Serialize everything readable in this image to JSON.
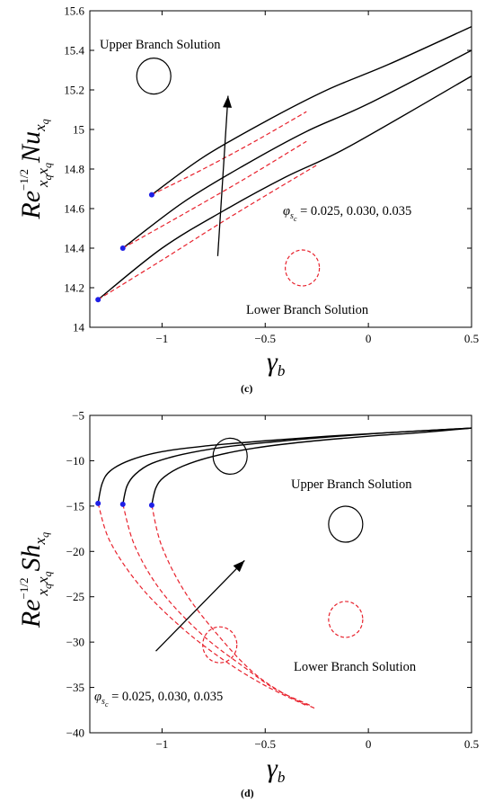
{
  "chart_data": [
    {
      "panel_label": "(c)",
      "type": "line",
      "xlabel": {
        "main": "γ",
        "sub": "b"
      },
      "ylabel": {
        "main": "Re",
        "exp": "−1/2",
        "sub1": "x",
        "sub2": "q",
        "sub3": "x",
        "sub4": "q",
        "mid": "Nu",
        "sub5": "x",
        "sub6": "q"
      },
      "xlim": [
        -1.35,
        0.5
      ],
      "ylim": [
        14,
        15.6
      ],
      "xticks": [
        -1,
        -0.5,
        0,
        0.5
      ],
      "xtick_labels": [
        "−1",
        "−0.5",
        "0",
        "0.5"
      ],
      "yticks": [
        14,
        14.2,
        14.4,
        14.6,
        14.8,
        15,
        15.2,
        15.4,
        15.6
      ],
      "ytick_labels": [
        "14",
        "14.2",
        "14.4",
        "14.6",
        "14.8",
        "15",
        "15.2",
        "15.4",
        "15.6"
      ],
      "annotations": {
        "upper": "Upper Branch Solution",
        "lower": "Lower Branch Solution",
        "param": "φ",
        "param_sub": "s",
        "param_subsub": "c",
        "param_values": " = 0.025, 0.030, 0.035"
      },
      "series": [
        {
          "branch": "upper",
          "color": "#000000",
          "x": [
            -1.05,
            -0.8,
            -0.5,
            -0.2,
            0.1,
            0.5
          ],
          "y": [
            14.67,
            14.86,
            15.04,
            15.2,
            15.33,
            15.52
          ]
        },
        {
          "branch": "upper",
          "color": "#000000",
          "x": [
            -1.19,
            -0.9,
            -0.6,
            -0.3,
            0.0,
            0.5
          ],
          "y": [
            14.4,
            14.63,
            14.82,
            14.99,
            15.13,
            15.4
          ]
        },
        {
          "branch": "upper",
          "color": "#000000",
          "x": [
            -1.31,
            -1.0,
            -0.7,
            -0.4,
            -0.1,
            0.5
          ],
          "y": [
            14.14,
            14.4,
            14.59,
            14.76,
            14.91,
            15.27
          ]
        },
        {
          "branch": "lower",
          "color": "#e8222d",
          "x": [
            -1.05,
            -0.8,
            -0.55,
            -0.3
          ],
          "y": [
            14.67,
            14.8,
            14.94,
            15.09
          ]
        },
        {
          "branch": "lower",
          "color": "#e8222d",
          "x": [
            -1.19,
            -0.9,
            -0.6,
            -0.3
          ],
          "y": [
            14.4,
            14.57,
            14.75,
            14.94
          ]
        },
        {
          "branch": "lower",
          "color": "#e8222d",
          "x": [
            -1.31,
            -1.0,
            -0.65,
            -0.25
          ],
          "y": [
            14.14,
            14.34,
            14.57,
            14.82
          ]
        }
      ],
      "turning_points": {
        "color": "#1f1fe6",
        "x": [
          -1.05,
          -1.19,
          -1.31
        ],
        "y": [
          14.67,
          14.4,
          14.14
        ]
      },
      "arrow": {
        "from": [
          -0.73,
          14.36
        ],
        "to": [
          -0.68,
          15.17
        ]
      },
      "circles": [
        {
          "branch": "upper",
          "cx": -1.04,
          "cy": 15.27
        },
        {
          "branch": "lower",
          "cx": -0.32,
          "cy": 14.3
        }
      ]
    },
    {
      "panel_label": "(d)",
      "type": "line",
      "xlabel": {
        "main": "γ",
        "sub": "b"
      },
      "ylabel": {
        "main": "Re",
        "exp": "−1/2",
        "sub1": "x",
        "sub2": "q",
        "sub3": "x",
        "sub4": "q",
        "mid": "Sh",
        "sub5": "x",
        "sub6": "q"
      },
      "xlim": [
        -1.35,
        0.5
      ],
      "ylim": [
        -40,
        -5
      ],
      "xticks": [
        -1,
        -0.5,
        0,
        0.5
      ],
      "xtick_labels": [
        "−1",
        "−0.5",
        "0",
        "0.5"
      ],
      "yticks": [
        -40,
        -35,
        -30,
        -25,
        -20,
        -15,
        -10,
        -5
      ],
      "ytick_labels": [
        "−40",
        "−35",
        "−30",
        "−25",
        "−20",
        "−15",
        "−10",
        "−5"
      ],
      "annotations": {
        "upper": "Upper Branch Solution",
        "lower": "Lower Branch Solution",
        "param": "φ",
        "param_sub": "s",
        "param_subsub": "c",
        "param_values": " = 0.025, 0.030, 0.035"
      },
      "series": [
        {
          "branch": "upper",
          "color": "#000000",
          "x": [
            -1.31,
            -1.29,
            -1.25,
            -1.15,
            -1.0,
            -0.8,
            -0.5,
            -0.2,
            0.1,
            0.5
          ],
          "y": [
            -14.7,
            -12.5,
            -11.1,
            -9.9,
            -9.0,
            -8.4,
            -7.8,
            -7.3,
            -6.9,
            -6.4
          ]
        },
        {
          "branch": "upper",
          "color": "#000000",
          "x": [
            -1.19,
            -1.17,
            -1.13,
            -1.05,
            -0.9,
            -0.7,
            -0.45,
            -0.2,
            0.1,
            0.5
          ],
          "y": [
            -14.8,
            -12.8,
            -11.5,
            -10.3,
            -9.3,
            -8.5,
            -7.9,
            -7.4,
            -6.9,
            -6.4
          ]
        },
        {
          "branch": "upper",
          "color": "#000000",
          "x": [
            -1.05,
            -1.03,
            -0.99,
            -0.9,
            -0.75,
            -0.55,
            -0.3,
            0.0,
            0.25,
            0.5
          ],
          "y": [
            -14.9,
            -13.0,
            -11.8,
            -10.6,
            -9.5,
            -8.6,
            -7.9,
            -7.3,
            -6.9,
            -6.4
          ]
        },
        {
          "branch": "lower",
          "color": "#e8222d",
          "x": [
            -1.31,
            -1.25,
            -1.1,
            -0.9,
            -0.7,
            -0.5,
            -0.3
          ],
          "y": [
            -14.7,
            -19.0,
            -24.0,
            -28.5,
            -32.0,
            -34.8,
            -37.0
          ]
        },
        {
          "branch": "lower",
          "color": "#e8222d",
          "x": [
            -1.19,
            -1.13,
            -1.0,
            -0.8,
            -0.6,
            -0.45,
            -0.28
          ],
          "y": [
            -14.8,
            -19.5,
            -24.5,
            -29.3,
            -32.8,
            -35.2,
            -37.0
          ]
        },
        {
          "branch": "lower",
          "color": "#e8222d",
          "x": [
            -1.05,
            -1.0,
            -0.88,
            -0.7,
            -0.55,
            -0.4,
            -0.25
          ],
          "y": [
            -14.9,
            -19.5,
            -24.8,
            -30.0,
            -33.5,
            -35.8,
            -37.4
          ]
        }
      ],
      "turning_points": {
        "color": "#1f1fe6",
        "x": [
          -1.31,
          -1.19,
          -1.05
        ],
        "y": [
          -14.7,
          -14.8,
          -14.9
        ]
      },
      "arrow": {
        "from": [
          -1.03,
          -31.0
        ],
        "to": [
          -0.6,
          -21.0
        ]
      },
      "circles": [
        {
          "branch": "upper",
          "cx": -0.67,
          "cy": -9.5
        },
        {
          "branch": "upper",
          "cx": -0.11,
          "cy": -17.0
        },
        {
          "branch": "lower",
          "cx": -0.72,
          "cy": -30.3
        },
        {
          "branch": "lower",
          "cx": -0.11,
          "cy": -27.5
        }
      ]
    }
  ]
}
